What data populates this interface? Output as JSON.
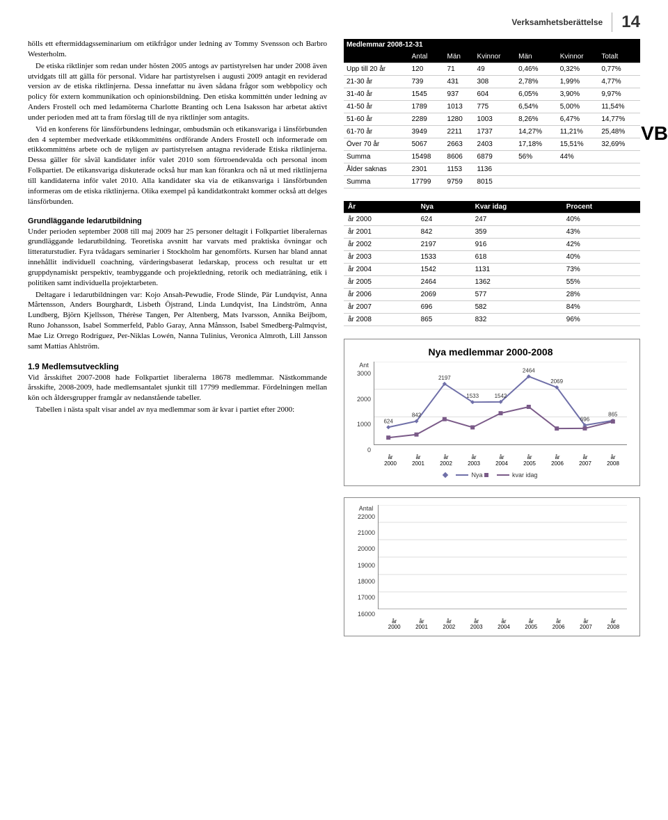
{
  "header": {
    "doc_title": "Verksamhetsberättelse",
    "page": "14"
  },
  "vb": "VB",
  "left": {
    "p1": "hölls ett eftermiddagsseminarium om etikfrågor under ledning av Tommy Svensson och Barbro Westerholm.",
    "p2": "De etiska riktlinjer som redan under hösten 2005 antogs av partistyrelsen har under 2008 även utvidgats till att gälla för personal. Vidare har partistyrelsen i augusti 2009 antagit en reviderad version av de etiska riktlinjerna. Dessa innefattar nu även sådana frågor som webbpolicy och policy för extern kommunikation och opinionsbildning. Den etiska kommittén under ledning av Anders Frostell och med ledamöterna Charlotte Branting och Lena Isaksson har arbetat aktivt under perioden med att ta fram förslag till de nya riktlinjer som antagits.",
    "p3": "Vid en konferens för länsförbundens ledningar, ombudsmän och etikansvariga i länsförbunden den 4 september medverkade etikkommitténs ordförande Anders Frostell och informerade om etikkommitténs arbete och de nyligen av partistyrelsen antagna reviderade Etiska riktlinjerna. Dessa gäller för såväl kandidater inför valet 2010 som förtroendevalda och personal inom Folkpartiet. De etikansvariga diskuterade också hur man kan förankra och nå ut med riktlinjerna till kandidaterna inför valet 2010. Alla kandidater ska via de etikansvariga i länsförbunden informeras om de etiska riktlinjerna. Olika exempel på kandidatkontrakt kommer också att delges länsförbunden.",
    "h1": "Grundläggande ledarutbildning",
    "p4": "Under perioden september 2008 till maj 2009 har 25 personer deltagit i Folkpartiet liberalernas grundläggande ledarutbildning. Teoretiska avsnitt har varvats med praktiska övningar och litteraturstudier. Fyra tvådagars seminarier i Stockholm har genomförts. Kursen har bland annat innehållit individuell coachning, värderingsbaserat ledarskap, process och resultat ur ett gruppdynamiskt perspektiv, teambyggande och projektledning, retorik och mediaträning, etik i politiken samt individuella projektarbeten.",
    "p5": "Deltagare i ledarutbildningen var: Kojo Ansah-Pewudie, Frode Slinde, Pär Lundqvist, Anna Mårtensson, Anders Bourghardt, Lisbeth Öjstrand, Linda Lundqvist, Ina Lindström, Anna Lundberg, Björn Kjellsson, Thérèse Tangen, Per Altenberg, Mats Ivarsson, Annika Beijbom, Runo Johansson, Isabel Sommerfeld, Pablo Garay, Anna Månsson, Isabel Smedberg-Palmqvist, Mae Liz Orrego Rodríguez, Per-Niklas Lowén, Nanna Tulinius, Veronica Almroth, Lill Jansson samt Mattias Ahlström.",
    "h2": "1.9 Medlemsutveckling",
    "p6": "Vid årsskiftet 2007-2008 hade Folkpartiet liberalerna 18678 medlemmar.  Nästkommande årsskifte, 2008-2009, hade medlemsantalet sjunkit till 17799 medlemmar. Fördelningen mellan kön och åldersgrupper framgår av nedanstående tabeller.",
    "p7": "Tabellen i nästa spalt visar andel av nya medlemmar som är kvar i partiet efter 2000:"
  },
  "table1": {
    "title": "Medlemmar 2008-12-31",
    "head": [
      "",
      "Antal",
      "Män",
      "Kvinnor",
      "Män",
      "Kvinnor",
      "Totalt"
    ],
    "rows": [
      [
        "Upp till 20 år",
        "120",
        "71",
        "49",
        "0,46%",
        "0,32%",
        "0,77%"
      ],
      [
        "21-30 år",
        "739",
        "431",
        "308",
        "2,78%",
        "1,99%",
        "4,77%"
      ],
      [
        "31-40 år",
        "1545",
        "937",
        "604",
        "6,05%",
        "3,90%",
        "9,97%"
      ],
      [
        "41-50 år",
        "1789",
        "1013",
        "775",
        "6,54%",
        "5,00%",
        "11,54%"
      ],
      [
        "51-60 år",
        "2289",
        "1280",
        "1003",
        "8,26%",
        "6,47%",
        "14,77%"
      ],
      [
        "61-70 år",
        "3949",
        "2211",
        "1737",
        "14,27%",
        "11,21%",
        "25,48%"
      ],
      [
        "Över 70 år",
        "5067",
        "2663",
        "2403",
        "17,18%",
        "15,51%",
        "32,69%"
      ],
      [
        "Summa",
        "15498",
        "8606",
        "6879",
        "56%",
        "44%",
        ""
      ],
      [
        "Ålder saknas",
        "2301",
        "1153",
        "1136",
        "",
        "",
        ""
      ],
      [
        "Summa",
        "17799",
        "9759",
        "8015",
        "",
        "",
        ""
      ]
    ]
  },
  "table2": {
    "head": [
      "År",
      "Nya",
      "Kvar idag",
      "Procent"
    ],
    "rows": [
      [
        "år 2000",
        "624",
        "247",
        "40%"
      ],
      [
        "år 2001",
        "842",
        "359",
        "43%"
      ],
      [
        "år 2002",
        "2197",
        "916",
        "42%"
      ],
      [
        "år 2003",
        "1533",
        "618",
        "40%"
      ],
      [
        "år 2004",
        "1542",
        "1131",
        "73%"
      ],
      [
        "år 2005",
        "2464",
        "1362",
        "55%"
      ],
      [
        "år 2006",
        "2069",
        "577",
        "28%"
      ],
      [
        "år 2007",
        "696",
        "582",
        "84%"
      ],
      [
        "år 2008",
        "865",
        "832",
        "96%"
      ]
    ]
  },
  "chart1": {
    "type": "line",
    "title": "Nya medlemmar  2000-2008",
    "ylabel_top": "Ant",
    "yticks": [
      "3000",
      "2000",
      "1000",
      "0"
    ],
    "xticks": [
      "år 2000",
      "år 2001",
      "år 2002",
      "år 2003",
      "år 2004",
      "år 2005",
      "år 2006",
      "år 2007",
      "år 2008"
    ],
    "series": [
      {
        "name": "Nya",
        "marker": "diamond",
        "color": "#6f6fa8",
        "values": [
          624,
          842,
          2197,
          1533,
          1542,
          2464,
          2069,
          696,
          865
        ],
        "labels": [
          "624",
          "842",
          "2197",
          "1533",
          "1542",
          "2464",
          "2069",
          "696",
          "865"
        ]
      },
      {
        "name": "kvar idag",
        "marker": "square",
        "color": "#7a5a88",
        "values": [
          247,
          359,
          916,
          618,
          1131,
          1362,
          577,
          582,
          832
        ]
      }
    ],
    "ylim": [
      0,
      3000
    ],
    "grid_color": "#ddd",
    "background": "#ffffff",
    "line_width": 2,
    "marker_size": 6
  },
  "chart2": {
    "type": "line-placeholder",
    "ylabel_top": "Antal",
    "yticks": [
      "22000",
      "21000",
      "20000",
      "19000",
      "18000",
      "17000",
      "16000"
    ],
    "xticks": [
      "år 2000",
      "år 2001",
      "år 2002",
      "år 2003",
      "år 2004",
      "år 2005",
      "år 2006",
      "år 2007",
      "år 2008"
    ],
    "ylim": [
      16000,
      22000
    ],
    "grid_color": "#ddd",
    "background": "#ffffff"
  }
}
